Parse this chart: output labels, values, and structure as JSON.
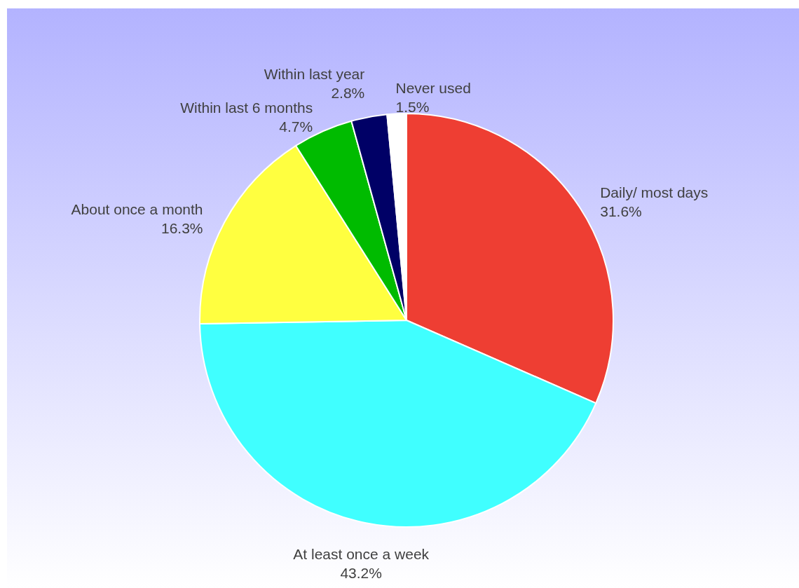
{
  "chart_data": {
    "type": "pie",
    "categories": [
      "Daily/ most days",
      "At least once a week",
      "About once a month",
      "Within last 6 months",
      "Within last year",
      "Never used"
    ],
    "values": [
      31.6,
      43.2,
      16.3,
      4.7,
      2.8,
      1.5
    ],
    "colors": [
      "#ee3e33",
      "#40ffff",
      "#ffff40",
      "#00bb00",
      "#000066",
      "#ffffff"
    ],
    "value_labels": [
      "31.6%",
      "43.2%",
      "16.3%",
      "4.7%",
      "2.8%",
      "1.5%"
    ]
  }
}
